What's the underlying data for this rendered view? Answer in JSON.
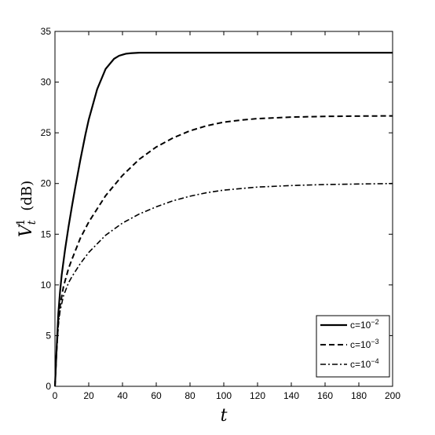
{
  "chart_data": {
    "type": "line",
    "title": "",
    "xlabel": "t",
    "ylabel": {
      "main": "V",
      "sub": "t",
      "sup": "1",
      "unit": "(dB)"
    },
    "xlim": [
      0,
      200
    ],
    "ylim": [
      0,
      35
    ],
    "x_ticks": [
      "0",
      "20",
      "40",
      "60",
      "80",
      "100",
      "120",
      "140",
      "160",
      "180",
      "200"
    ],
    "y_ticks": [
      "0",
      "5",
      "10",
      "15",
      "20",
      "25",
      "30",
      "35"
    ],
    "grid": false,
    "legend_position": "bottom-right",
    "series": [
      {
        "name": "c=10",
        "exponent": "−2",
        "style": "solid",
        "color": "#000000",
        "x": [
          0,
          1,
          2,
          3,
          4,
          6,
          8,
          10,
          12,
          15,
          18,
          20,
          25,
          30,
          35,
          38,
          40,
          42,
          45,
          48,
          50,
          55,
          60,
          70,
          80,
          100,
          120,
          140,
          160,
          180,
          200
        ],
        "y": [
          0,
          3.8,
          7.2,
          9.3,
          11,
          13.5,
          15.7,
          17.7,
          19.6,
          22.3,
          24.8,
          26.3,
          29.3,
          31.3,
          32.3,
          32.6,
          32.7,
          32.8,
          32.85,
          32.88,
          32.9,
          32.9,
          32.9,
          32.9,
          32.9,
          32.9,
          32.9,
          32.9,
          32.9,
          32.9,
          32.9
        ]
      },
      {
        "name": "c=10",
        "exponent": "−3",
        "style": "dashed",
        "color": "#000000",
        "x": [
          0,
          1,
          2,
          3,
          5,
          8,
          10,
          15,
          20,
          30,
          40,
          50,
          60,
          70,
          80,
          90,
          100,
          110,
          120,
          140,
          160,
          180,
          200
        ],
        "y": [
          0,
          3.6,
          6.3,
          7.9,
          9.8,
          11.6,
          12.5,
          14.6,
          16.2,
          18.8,
          20.8,
          22.4,
          23.6,
          24.5,
          25.2,
          25.7,
          26.05,
          26.25,
          26.4,
          26.55,
          26.62,
          26.65,
          26.67
        ]
      },
      {
        "name": "c=10",
        "exponent": "−4",
        "style": "dashdot",
        "color": "#000000",
        "x": [
          0,
          1,
          2,
          3,
          5,
          8,
          10,
          15,
          20,
          30,
          40,
          50,
          60,
          70,
          80,
          90,
          100,
          110,
          120,
          140,
          160,
          180,
          200
        ],
        "y": [
          0,
          3.4,
          6.0,
          7.4,
          8.9,
          10.2,
          10.8,
          12.1,
          13.2,
          14.9,
          16.1,
          17.0,
          17.7,
          18.3,
          18.75,
          19.1,
          19.35,
          19.5,
          19.65,
          19.8,
          19.9,
          19.95,
          20.0
        ]
      }
    ]
  }
}
